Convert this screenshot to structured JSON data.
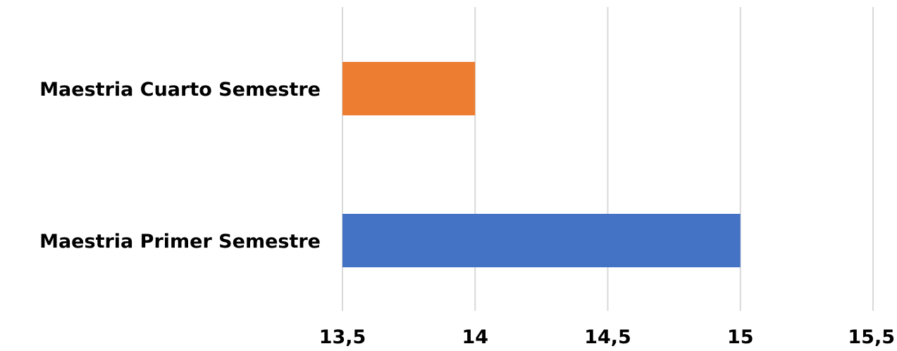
{
  "chart_data": {
    "type": "bar",
    "orientation": "horizontal",
    "categories": [
      "Maestria Cuarto Semestre",
      "Maestria Primer Semestre"
    ],
    "values": [
      14,
      15
    ],
    "colors": [
      "#ed7d31",
      "#4472c4"
    ],
    "xlim": [
      13.5,
      15.5
    ],
    "ticks": [
      13.5,
      14,
      14.5,
      15,
      15.5
    ],
    "tick_labels": [
      "13,5",
      "14",
      "14,5",
      "15",
      "15,5"
    ],
    "grid": true,
    "legend": "none"
  }
}
